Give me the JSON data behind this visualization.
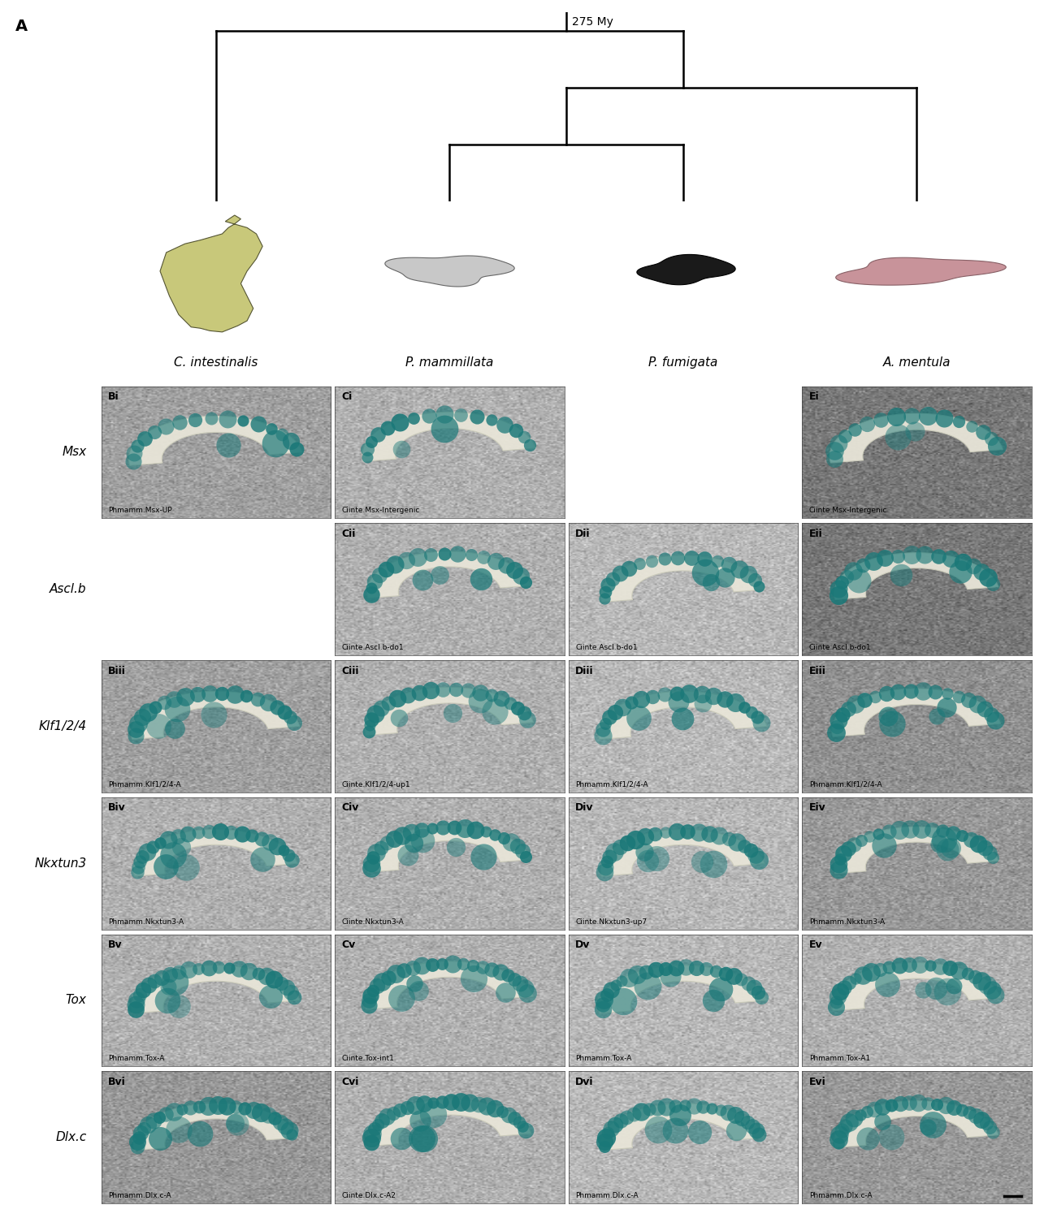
{
  "panel_label": "A",
  "tree_label": "275 My",
  "species_names": [
    "C. intestinalis",
    "P. mammillata",
    "P. fumigata",
    "A. mentula"
  ],
  "species_colors": [
    "#c8c87a",
    "#c8c8c8",
    "#202020",
    "#c8939a"
  ],
  "gene_labels": [
    "Msx",
    "Ascl.b",
    "Klf1/2/4",
    "Nkxtun3",
    "Tox",
    "Dlx.c"
  ],
  "rows": [
    {
      "gene": "Msx",
      "panels": [
        {
          "label": "Bi",
          "col": 0,
          "caption": "Phmamm.Msx-UP",
          "has_image": true,
          "bg": "#a0a0a0"
        },
        {
          "label": "Ci",
          "col": 1,
          "caption": "Ciinte.Msx-Intergenic",
          "has_image": true,
          "bg": "#b0b0b0"
        },
        {
          "label": null,
          "col": 2,
          "caption": "",
          "has_image": false,
          "bg": "#ffffff"
        },
        {
          "label": "Ei",
          "col": 3,
          "caption": "Ciinte.Msx-Intergenic",
          "has_image": true,
          "bg": "#787878"
        }
      ]
    },
    {
      "gene": "Ascl.b",
      "panels": [
        {
          "label": null,
          "col": 0,
          "caption": "",
          "has_image": false,
          "bg": "#ffffff"
        },
        {
          "label": "Cii",
          "col": 1,
          "caption": "Ciinte.Ascl.b-do1",
          "has_image": true,
          "bg": "#b0b0b0"
        },
        {
          "label": "Dii",
          "col": 2,
          "caption": "Ciinte.Ascl.b-do1",
          "has_image": true,
          "bg": "#b8b8b8"
        },
        {
          "label": "Eii",
          "col": 3,
          "caption": "Ciinte.Ascl.b-do1",
          "has_image": true,
          "bg": "#787878"
        }
      ]
    },
    {
      "gene": "Klf1/2/4",
      "panels": [
        {
          "label": "Biii",
          "col": 0,
          "caption": "Phmamm.Klf1/2/4-A",
          "has_image": true,
          "bg": "#a0a0a0"
        },
        {
          "label": "Ciii",
          "col": 1,
          "caption": "Ciinte.Klf1/2/4-up1",
          "has_image": true,
          "bg": "#b0b0b0"
        },
        {
          "label": "Diii",
          "col": 2,
          "caption": "Phmamm.Klf1/2/4-A",
          "has_image": true,
          "bg": "#b8b8b8"
        },
        {
          "label": "Eiii",
          "col": 3,
          "caption": "Phmamm.Klf1/2/4-A",
          "has_image": true,
          "bg": "#909090"
        }
      ]
    },
    {
      "gene": "Nkxtun3",
      "panels": [
        {
          "label": "Biv",
          "col": 0,
          "caption": "Phmamm.Nkxtun3-A",
          "has_image": true,
          "bg": "#b0b0b0"
        },
        {
          "label": "Civ",
          "col": 1,
          "caption": "Ciinte.Nkxtun3-A",
          "has_image": true,
          "bg": "#b0b0b0"
        },
        {
          "label": "Div",
          "col": 2,
          "caption": "Ciinte.Nkxtun3-up7",
          "has_image": true,
          "bg": "#b8b8b8"
        },
        {
          "label": "Eiv",
          "col": 3,
          "caption": "Phmamm.Nkxtun3-A",
          "has_image": true,
          "bg": "#989898"
        }
      ]
    },
    {
      "gene": "Tox",
      "panels": [
        {
          "label": "Bv",
          "col": 0,
          "caption": "Phmamm.Tox-A",
          "has_image": true,
          "bg": "#b0b0b0"
        },
        {
          "label": "Cv",
          "col": 1,
          "caption": "Ciinte.Tox-int1",
          "has_image": true,
          "bg": "#b0b0b0"
        },
        {
          "label": "Dv",
          "col": 2,
          "caption": "Phmamm.Tox-A",
          "has_image": true,
          "bg": "#b8b8b8"
        },
        {
          "label": "Ev",
          "col": 3,
          "caption": "Phmamm.Tox-A1",
          "has_image": true,
          "bg": "#b0b0b0"
        }
      ]
    },
    {
      "gene": "Dlx.c",
      "panels": [
        {
          "label": "Bvi",
          "col": 0,
          "caption": "Phmamm.Dlx.c-A",
          "has_image": true,
          "bg": "#989898"
        },
        {
          "label": "Cvi",
          "col": 1,
          "caption": "Ciinte.Dlx.c-A2",
          "has_image": true,
          "bg": "#b0b0b0"
        },
        {
          "label": "Dvi",
          "col": 2,
          "caption": "Phmamm.Dlx.c-A",
          "has_image": true,
          "bg": "#b8b8b8"
        },
        {
          "label": "Evi",
          "col": 3,
          "caption": "Phmamm.Dlx.c-A",
          "has_image": true,
          "bg": "#989898"
        }
      ]
    }
  ]
}
